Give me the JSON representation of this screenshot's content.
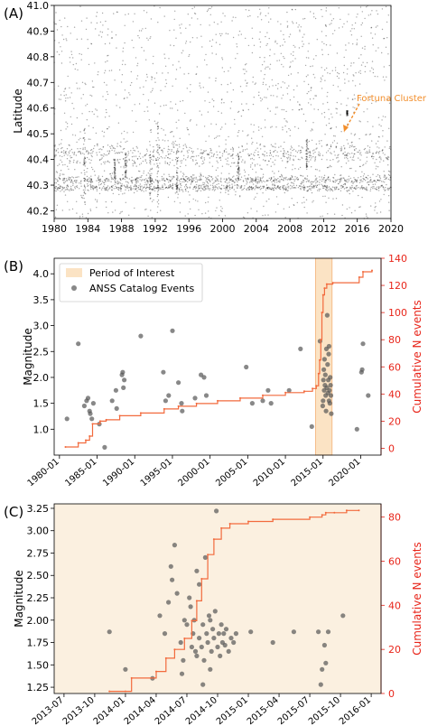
{
  "panels": [
    {
      "tag": "(A)",
      "chart_data": {
        "type": "scatter",
        "ylabel": "Latitude",
        "xlabel": "",
        "xlim": [
          1980,
          2020
        ],
        "ylim": [
          40.17,
          41.0
        ],
        "xticks": [
          "1980",
          "1984",
          "1988",
          "1992",
          "1996",
          "2000",
          "2004",
          "2008",
          "2012",
          "2016",
          "2020"
        ],
        "yticks": [
          "40.2",
          "40.3",
          "40.4",
          "40.5",
          "40.6",
          "40.7",
          "40.8",
          "40.9",
          "41.0"
        ],
        "annotation": {
          "text": "Fortuna Cluster",
          "point": [
            2014.8,
            40.58
          ],
          "color": "#f28e2b"
        },
        "bands": [
          {
            "lat": 40.32,
            "spread": 0.02
          },
          {
            "lat": 40.42,
            "spread": 0.06
          },
          {
            "lat": 40.29,
            "spread": 0.015
          }
        ],
        "streaks": [
          {
            "year": 1983.6,
            "lat_from": 40.22,
            "lat_to": 40.52
          },
          {
            "year": 1987.2,
            "lat_from": 40.32,
            "lat_to": 40.4
          },
          {
            "year": 1988.5,
            "lat_from": 40.33,
            "lat_to": 40.43
          },
          {
            "year": 1991.4,
            "lat_from": 40.24,
            "lat_to": 40.46
          },
          {
            "year": 1992.3,
            "lat_from": 40.22,
            "lat_to": 40.55
          },
          {
            "year": 1994.6,
            "lat_from": 40.24,
            "lat_to": 40.44
          },
          {
            "year": 2001.9,
            "lat_from": 40.32,
            "lat_to": 40.42
          },
          {
            "year": 2010.0,
            "lat_from": 40.36,
            "lat_to": 40.48
          },
          {
            "year": 2014.8,
            "lat_from": 40.57,
            "lat_to": 40.59
          }
        ]
      }
    },
    {
      "tag": "(B)",
      "chart_data": {
        "type": "scatter",
        "ylabel": "Magnitude",
        "y2label": "Cumulative N events",
        "ylim": [
          0.5,
          4.3
        ],
        "y2lim": [
          -5,
          140
        ],
        "xlim": [
          1979.3,
          2022.7
        ],
        "xticks": [
          "1980-01",
          "1985-01",
          "1990-01",
          "1995-01",
          "2000-01",
          "2005-01",
          "2010-01",
          "2015-01",
          "2020-01"
        ],
        "yticks": [
          "1.0",
          "1.5",
          "2.0",
          "2.5",
          "3.0",
          "3.5",
          "4.0"
        ],
        "y2ticks": [
          "0",
          "20",
          "40",
          "60",
          "80",
          "100",
          "120",
          "140"
        ],
        "legend": [
          {
            "label": "Period of Interest",
            "color": "#fbe3c4"
          },
          {
            "label": "ANSS Catalog Events",
            "color": "#555555"
          }
        ],
        "period": [
          2014.0,
          2016.2
        ],
        "points": [
          [
            1981.0,
            1.2
          ],
          [
            1982.5,
            2.65
          ],
          [
            1983.3,
            1.45
          ],
          [
            1983.6,
            1.55
          ],
          [
            1983.8,
            1.6
          ],
          [
            1984.0,
            1.35
          ],
          [
            1984.1,
            1.3
          ],
          [
            1984.3,
            1.2
          ],
          [
            1984.5,
            1.5
          ],
          [
            1985.3,
            1.1
          ],
          [
            1986.0,
            0.65
          ],
          [
            1987.0,
            1.55
          ],
          [
            1987.5,
            1.75
          ],
          [
            1987.6,
            1.4
          ],
          [
            1988.3,
            2.05
          ],
          [
            1988.4,
            2.1
          ],
          [
            1988.5,
            1.8
          ],
          [
            1988.6,
            1.95
          ],
          [
            1990.8,
            2.8
          ],
          [
            1993.8,
            2.1
          ],
          [
            1994.1,
            1.55
          ],
          [
            1994.5,
            1.65
          ],
          [
            1995.0,
            2.9
          ],
          [
            1995.8,
            1.9
          ],
          [
            1996.2,
            1.5
          ],
          [
            1996.3,
            1.35
          ],
          [
            1998.0,
            1.6
          ],
          [
            1998.8,
            2.05
          ],
          [
            1999.2,
            2.0
          ],
          [
            1999.5,
            1.65
          ],
          [
            2004.8,
            2.2
          ],
          [
            2005.6,
            1.5
          ],
          [
            2007.0,
            1.55
          ],
          [
            2007.7,
            1.75
          ],
          [
            2008.1,
            1.5
          ],
          [
            2010.5,
            1.75
          ],
          [
            2012.0,
            2.55
          ],
          [
            2013.5,
            1.05
          ],
          [
            2014.6,
            2.7
          ],
          [
            2015.8,
            2.6
          ],
          [
            2019.5,
            1.0
          ],
          [
            2020.1,
            2.1
          ],
          [
            2020.2,
            2.15
          ],
          [
            2020.3,
            2.65
          ],
          [
            2021.0,
            1.65
          ],
          [
            2014.95,
            1.45
          ],
          [
            2015.0,
            1.55
          ],
          [
            2015.05,
            1.95
          ],
          [
            2015.1,
            2.15
          ],
          [
            2015.15,
            1.75
          ],
          [
            2015.2,
            2.35
          ],
          [
            2015.25,
            1.85
          ],
          [
            2015.3,
            2.05
          ],
          [
            2015.35,
            1.65
          ],
          [
            2015.4,
            1.35
          ],
          [
            2015.45,
            2.55
          ],
          [
            2015.5,
            1.8
          ],
          [
            2015.55,
            3.2
          ],
          [
            2015.6,
            2.25
          ],
          [
            2015.65,
            1.7
          ],
          [
            2015.7,
            1.95
          ],
          [
            2015.75,
            2.45
          ],
          [
            2015.8,
            1.55
          ],
          [
            2015.85,
            1.75
          ],
          [
            2015.9,
            1.5
          ],
          [
            2015.95,
            2.0
          ],
          [
            2016.0,
            1.85
          ],
          [
            2016.05,
            1.65
          ],
          [
            2016.1,
            1.3
          ]
        ],
        "cumulative": [
          [
            1980.8,
            1
          ],
          [
            1982.5,
            4
          ],
          [
            1983.5,
            6
          ],
          [
            1984.0,
            9
          ],
          [
            1984.4,
            18
          ],
          [
            1985.4,
            20
          ],
          [
            1986.2,
            21
          ],
          [
            1988.0,
            24
          ],
          [
            1990.8,
            26
          ],
          [
            1993.9,
            29
          ],
          [
            1995.8,
            31
          ],
          [
            1998.2,
            33
          ],
          [
            2001.0,
            35
          ],
          [
            2004.0,
            37
          ],
          [
            2007.0,
            39
          ],
          [
            2010.0,
            41
          ],
          [
            2012.5,
            42
          ],
          [
            2013.6,
            44
          ],
          [
            2014.1,
            46
          ],
          [
            2014.4,
            55
          ],
          [
            2014.55,
            65
          ],
          [
            2014.7,
            80
          ],
          [
            2014.85,
            100
          ],
          [
            2015.0,
            113
          ],
          [
            2015.2,
            118
          ],
          [
            2015.5,
            121
          ],
          [
            2016.3,
            122
          ],
          [
            2019.8,
            126
          ],
          [
            2020.3,
            130
          ],
          [
            2021.5,
            131
          ]
        ]
      }
    },
    {
      "tag": "(C)",
      "chart_data": {
        "type": "scatter",
        "ylabel": "Magnitude",
        "y2label": "Cumulative N events",
        "ylim": [
          1.18,
          3.3
        ],
        "y2lim": [
          0,
          86
        ],
        "xlim": [
          2013.42,
          2016.08
        ],
        "xticks": [
          "2013-07",
          "2013-10",
          "2014-01",
          "2014-04",
          "2014-07",
          "2014-10",
          "2015-01",
          "2015-04",
          "2015-07",
          "2015-10",
          "2016-01"
        ],
        "yticks": [
          "1.25",
          "1.50",
          "1.75",
          "2.00",
          "2.25",
          "2.50",
          "2.75",
          "3.00",
          "3.25"
        ],
        "y2ticks": [
          "0",
          "20",
          "40",
          "60",
          "80"
        ],
        "points": [
          [
            2013.87,
            1.87
          ],
          [
            2014.0,
            1.45
          ],
          [
            2014.22,
            1.35
          ],
          [
            2014.28,
            2.05
          ],
          [
            2014.32,
            1.85
          ],
          [
            2014.35,
            2.2
          ],
          [
            2014.37,
            2.6
          ],
          [
            2014.38,
            2.45
          ],
          [
            2014.4,
            2.84
          ],
          [
            2014.42,
            2.3
          ],
          [
            2014.45,
            1.75
          ],
          [
            2014.47,
            1.55
          ],
          [
            2014.48,
            2.0
          ],
          [
            2014.5,
            1.95
          ],
          [
            2014.52,
            2.25
          ],
          [
            2014.53,
            2.15
          ],
          [
            2014.55,
            1.85
          ],
          [
            2014.56,
            2.0
          ],
          [
            2014.57,
            1.65
          ],
          [
            2014.58,
            2.55
          ],
          [
            2014.6,
            2.4
          ],
          [
            2014.6,
            1.8
          ],
          [
            2014.62,
            1.7
          ],
          [
            2014.63,
            1.95
          ],
          [
            2014.64,
            1.55
          ],
          [
            2014.65,
            2.7
          ],
          [
            2014.66,
            1.85
          ],
          [
            2014.67,
            1.75
          ],
          [
            2014.68,
            2.05
          ],
          [
            2014.69,
            1.45
          ],
          [
            2014.7,
            1.65
          ],
          [
            2014.71,
            1.9
          ],
          [
            2014.72,
            1.8
          ],
          [
            2014.73,
            2.1
          ],
          [
            2014.74,
            3.22
          ],
          [
            2014.75,
            1.7
          ],
          [
            2014.76,
            1.85
          ],
          [
            2014.77,
            1.6
          ],
          [
            2014.78,
            1.95
          ],
          [
            2014.79,
            1.75
          ],
          [
            2014.8,
            1.85
          ],
          [
            2014.81,
            1.72
          ],
          [
            2014.82,
            1.9
          ],
          [
            2014.84,
            1.65
          ],
          [
            2014.86,
            1.8
          ],
          [
            2014.88,
            1.75
          ],
          [
            2014.9,
            1.85
          ],
          [
            2014.63,
            1.28
          ],
          [
            2014.69,
            2.0
          ],
          [
            2014.58,
            1.6
          ],
          [
            2014.46,
            1.4
          ],
          [
            2014.54,
            1.7
          ],
          [
            2015.02,
            1.87
          ],
          [
            2015.2,
            1.75
          ],
          [
            2015.37,
            1.87
          ],
          [
            2015.57,
            1.87
          ],
          [
            2015.6,
            1.45
          ],
          [
            2015.62,
            1.72
          ],
          [
            2015.63,
            1.52
          ],
          [
            2015.65,
            1.87
          ],
          [
            2015.59,
            1.28
          ],
          [
            2015.77,
            2.05
          ]
        ],
        "cumulative": [
          [
            2013.87,
            1
          ],
          [
            2014.0,
            1
          ],
          [
            2014.05,
            7
          ],
          [
            2014.25,
            10
          ],
          [
            2014.33,
            16
          ],
          [
            2014.4,
            20
          ],
          [
            2014.48,
            25
          ],
          [
            2014.54,
            33
          ],
          [
            2014.58,
            42
          ],
          [
            2014.62,
            52
          ],
          [
            2014.67,
            63
          ],
          [
            2014.72,
            70
          ],
          [
            2014.78,
            75
          ],
          [
            2014.85,
            77
          ],
          [
            2015.0,
            78
          ],
          [
            2015.2,
            79
          ],
          [
            2015.5,
            80
          ],
          [
            2015.6,
            81
          ],
          [
            2015.63,
            82
          ],
          [
            2015.7,
            82
          ],
          [
            2015.8,
            83
          ],
          [
            2015.9,
            83
          ]
        ]
      }
    }
  ],
  "colors": {
    "axis": "#000000",
    "points": "#555555",
    "cumulative": "#f26a3d",
    "right_axis": "#e8251a",
    "period_fill": "#fbe3c4",
    "period_edge": "#f4b37a",
    "panel_c_background": "#fbf0e0",
    "annotation": "#f28e2b"
  }
}
